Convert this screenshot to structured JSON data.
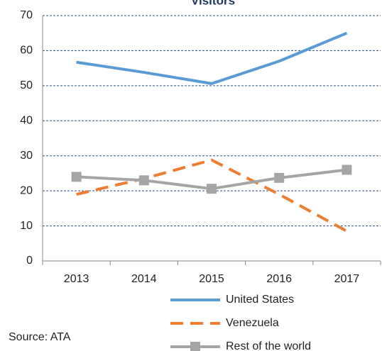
{
  "chart_data": {
    "type": "line",
    "title": "Visitors",
    "categories": [
      "2013",
      "2014",
      "2015",
      "2016",
      "2017"
    ],
    "series": [
      {
        "name": "United States",
        "color": "#5b9bd5",
        "values": [
          56.7,
          53.8,
          50.6,
          57,
          65
        ]
      },
      {
        "name": "Venezuela",
        "color": "#ed7d31",
        "values": [
          19,
          23.5,
          28.8,
          19,
          8.5
        ]
      },
      {
        "name": "Rest of the world",
        "color": "#a5a5a5",
        "values": [
          24,
          23,
          20.6,
          23.7,
          26
        ]
      }
    ],
    "ylim": [
      0,
      70
    ],
    "yticks": [
      0,
      10,
      20,
      30,
      40,
      50,
      60,
      70
    ],
    "grid": true,
    "source": "Source: ATA"
  }
}
